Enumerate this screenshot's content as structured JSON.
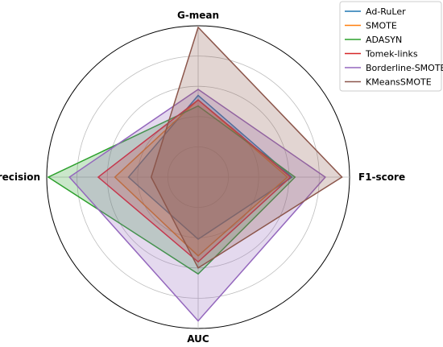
{
  "chart_data": {
    "type": "radar",
    "axes": [
      "G-mean",
      "F1-score",
      "AUC",
      "Precision"
    ],
    "rlim": [
      0,
      1
    ],
    "grid": true,
    "grid_levels": [
      0.2,
      0.4,
      0.6,
      0.8,
      1.0
    ],
    "legend_position": "top-right",
    "series": [
      {
        "name": "Ad-RuLer",
        "color": "#1f77b4",
        "values": [
          0.54,
          0.62,
          0.41,
          0.46
        ]
      },
      {
        "name": "SMOTE",
        "color": "#ff7f0e",
        "values": [
          0.51,
          0.59,
          0.52,
          0.55
        ]
      },
      {
        "name": "ADASYN",
        "color": "#2ca02c",
        "values": [
          0.47,
          0.64,
          0.64,
          0.99
        ]
      },
      {
        "name": "Tomek-links",
        "color": "#d62728",
        "values": [
          0.51,
          0.61,
          0.56,
          0.66
        ]
      },
      {
        "name": "Borderline-SMOTE",
        "color": "#9467bd",
        "values": [
          0.58,
          0.84,
          0.95,
          0.85
        ]
      },
      {
        "name": "KMeansSMOTE",
        "color": "#8c564b",
        "values": [
          0.99,
          0.95,
          0.6,
          0.31
        ]
      }
    ]
  }
}
